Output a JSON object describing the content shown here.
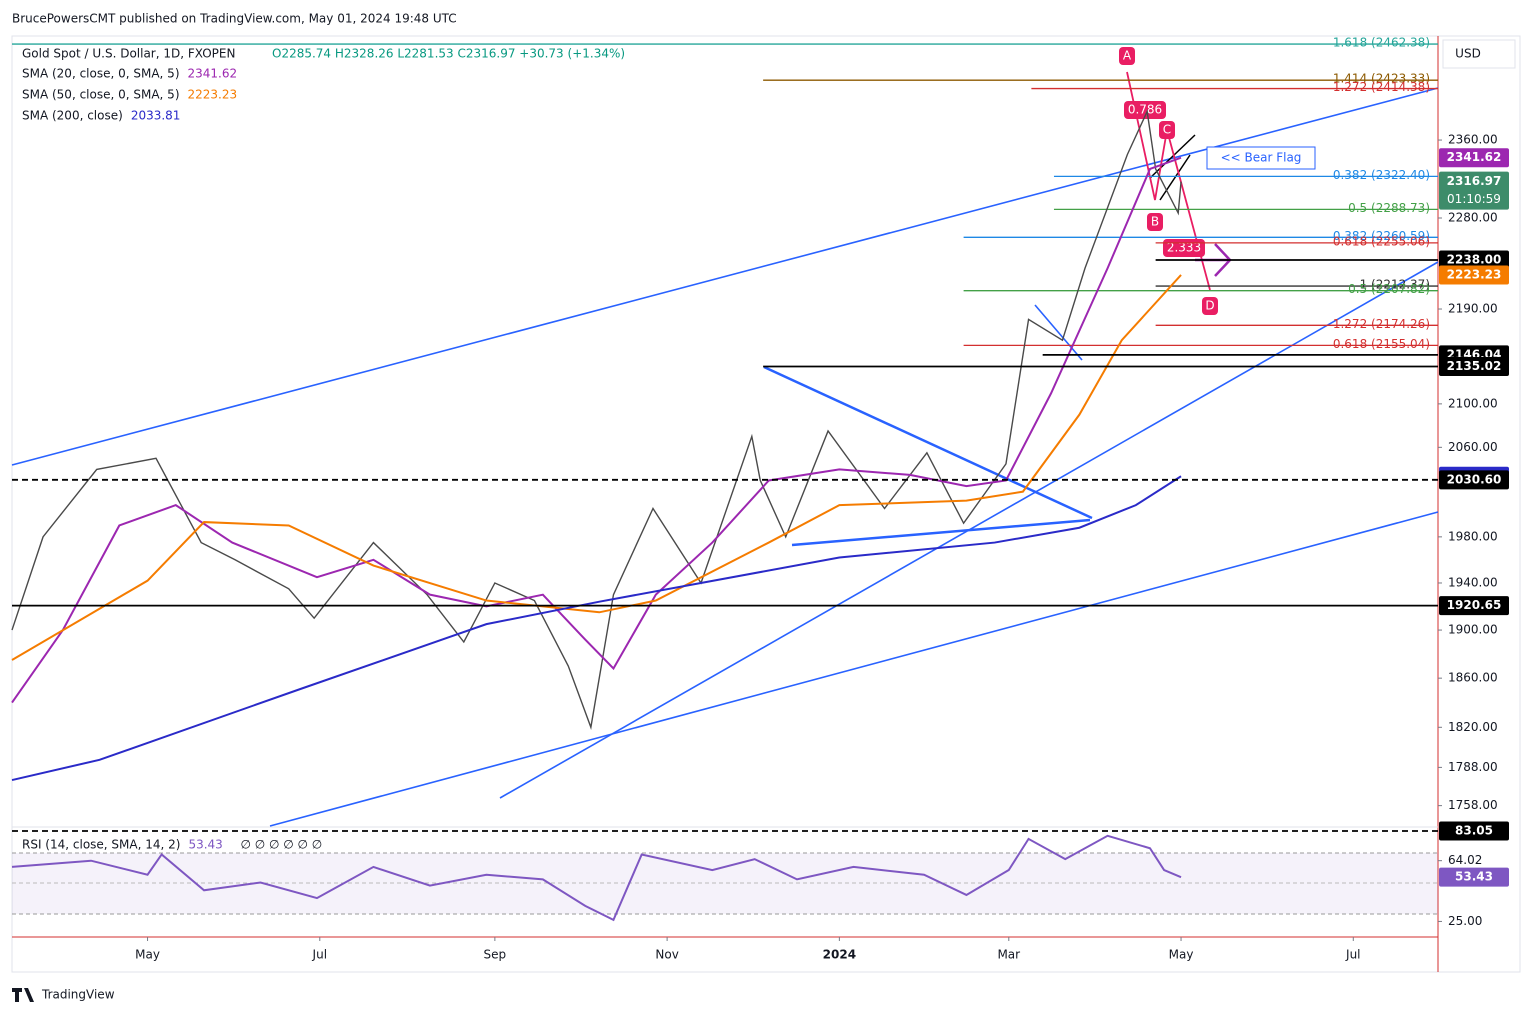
{
  "header": "BrucePowersCMT published on TradingView.com, May 01, 2024 19:48 UTC",
  "footer": "TradingView",
  "chart_data": [
    {
      "type": "line",
      "title": "Gold Spot / U.S. Dollar, 1D, FXOPEN",
      "ohlc": "O2285.74 H2328.26 L2281.53 C2316.97 +30.73 (+1.34%)",
      "currency": "USD",
      "log": true,
      "xlim": [
        -48,
        457
      ],
      "xticks": [
        {
          "value": 0,
          "label": "May"
        },
        {
          "value": 61,
          "label": "Jul"
        },
        {
          "value": 123,
          "label": "Sep"
        },
        {
          "value": 184,
          "label": "Nov"
        },
        {
          "value": 245,
          "label": "2024"
        },
        {
          "value": 305,
          "label": "Mar"
        },
        {
          "value": 366,
          "label": "May"
        },
        {
          "value": 427,
          "label": "Jul"
        }
      ],
      "ylim": [
        1743,
        2469
      ],
      "yticks": [
        {
          "value": 1758,
          "label": "1758.00"
        },
        {
          "value": 1788,
          "label": "1788.00"
        },
        {
          "value": 1820,
          "label": "1820.00"
        },
        {
          "value": 1860,
          "label": "1860.00"
        },
        {
          "value": 1900,
          "label": "1900.00"
        },
        {
          "value": 1940,
          "label": "1940.00"
        },
        {
          "value": 1980,
          "label": "1980.00"
        },
        {
          "value": 2060,
          "label": "2060.00"
        },
        {
          "value": 2100,
          "label": "2100.00"
        },
        {
          "value": 2190,
          "label": "2190.00"
        },
        {
          "value": 2280,
          "label": "2280.00"
        },
        {
          "value": 2360,
          "label": "2360.00"
        }
      ],
      "series": [
        {
          "name": "Gold Spot / U.S. Dollar, 1D, FXOPEN",
          "color": "#4a4a4a",
          "x": [
            -48,
            -37,
            -18,
            3,
            19,
            31,
            50,
            59,
            80,
            99,
            112,
            123,
            137,
            149,
            157,
            165,
            179,
            196,
            214,
            217,
            226,
            241,
            261,
            276,
            289,
            304,
            312,
            324,
            332,
            347,
            354,
            357,
            365,
            366
          ],
          "values": [
            1900,
            1980,
            2040,
            2050,
            1975,
            1960,
            1935,
            1910,
            1975,
            1930,
            1890,
            1940,
            1925,
            1870,
            1820,
            1930,
            2005,
            1940,
            2070,
            2030,
            1980,
            2075,
            2005,
            2055,
            1992,
            2045,
            2180,
            2160,
            2230,
            2345,
            2390,
            2330,
            2285,
            2316.97
          ]
        },
        {
          "name": "SMA (20, close, 0, SMA, 5)",
          "last": 2341.62,
          "color": "#9c27b0",
          "x": [
            -48,
            -30,
            -10,
            10,
            30,
            60,
            80,
            100,
            120,
            140,
            155,
            165,
            180,
            200,
            220,
            245,
            270,
            290,
            304,
            320,
            340,
            355,
            366
          ],
          "values": [
            1840,
            1900,
            1990,
            2008,
            1975,
            1945,
            1960,
            1930,
            1920,
            1930,
            1892,
            1868,
            1930,
            1975,
            2030,
            2040,
            2035,
            2025,
            2030,
            2110,
            2230,
            2330,
            2341.62
          ]
        },
        {
          "name": "SMA (50, close, 0, SMA, 5)",
          "last": 2223.23,
          "color": "#f57c00",
          "x": [
            -48,
            0,
            20,
            50,
            80,
            120,
            160,
            180,
            220,
            245,
            290,
            310,
            330,
            345,
            366
          ],
          "values": [
            1875,
            1942,
            1993,
            1990,
            1955,
            1925,
            1915,
            1925,
            1975,
            2008,
            2012,
            2020,
            2090,
            2160,
            2223.23
          ]
        },
        {
          "name": "SMA (200, close)",
          "last": 2033.81,
          "color": "#2a2ac8",
          "x": [
            -48,
            -17,
            54,
            120,
            160,
            245,
            300,
            330,
            350,
            366
          ],
          "values": [
            1778,
            1794,
            1851,
            1905,
            1924,
            1962,
            1975,
            1988,
            2008,
            2033.81
          ]
        }
      ],
      "levels": [
        {
          "label": "1.618 (2462.38)",
          "value": 2462.38,
          "from": -48,
          "color": "#26a69a"
        },
        {
          "label": "1.414 (2423.33)",
          "value": 2423.33,
          "from": 218,
          "color": "#8d5a00"
        },
        {
          "label": "1.272 (2414.38)",
          "value": 2414.38,
          "from": 313,
          "color": "#d32f2f"
        },
        {
          "label": "0.382 (2322.40)",
          "value": 2322.4,
          "from": 321,
          "color": "#1e88e5"
        },
        {
          "label": "0.5 (2288.73)",
          "value": 2288.73,
          "from": 321,
          "color": "#43a047"
        },
        {
          "label": "0.382 (2260.59)",
          "value": 2260.59,
          "from": 289,
          "color": "#1e88e5"
        },
        {
          "label": "0.618 (2255.06)",
          "value": 2255.06,
          "from": 357,
          "color": "#d32f2f"
        },
        {
          "label": "1 (2212.37)",
          "value": 2212.37,
          "from": 357,
          "color": "#333333"
        },
        {
          "label": "0.5 (2207.82)",
          "value": 2207.82,
          "from": 289,
          "color": "#43a047"
        },
        {
          "label": "1.272 (2174.26)",
          "value": 2174.26,
          "from": 357,
          "color": "#d32f2f"
        },
        {
          "label": "0.618 (2155.04)",
          "value": 2155.04,
          "from": 289,
          "color": "#d32f2f"
        }
      ],
      "price_labels": [
        {
          "value": 2341.62,
          "label": "2341.62",
          "color": "#9c27b0"
        },
        {
          "value": 2316.97,
          "label": "2316.97",
          "color": "#3d8c6a",
          "countdown": "01:10:59"
        },
        {
          "value": 2238,
          "label": "2238.00",
          "color": "#000000",
          "line_from": 357
        },
        {
          "value": 2223.23,
          "label": "2223.23",
          "color": "#f57c00"
        },
        {
          "value": 2146.04,
          "label": "2146.04",
          "color": "#000000",
          "line_from": 317
        },
        {
          "value": 2135.02,
          "label": "2135.02",
          "color": "#000000",
          "line_from": 218
        },
        {
          "value": 2033.81,
          "label": "2033.81",
          "color": "#2a2ac8"
        },
        {
          "value": 2030.6,
          "label": "2030.60",
          "color": "#000000",
          "line_from": -48,
          "dashed": true
        },
        {
          "value": 1920.65,
          "label": "1920.65",
          "color": "#000000",
          "line_from": -48
        }
      ],
      "annotations": {
        "bear_flag": "<< Bear Flag",
        "points": [
          "A",
          "B",
          "C",
          "D"
        ],
        "ratios": [
          "0.786",
          "2.333"
        ]
      }
    },
    {
      "type": "line",
      "title": "RSI (14, close, SMA, 14, 2)",
      "na": "∅ ∅ ∅ ∅ ∅ ∅",
      "xlim": [
        -48,
        457
      ],
      "ylim": [
        15,
        85
      ],
      "yticks": [
        {
          "value": 64.02,
          "label": "64.02"
        },
        {
          "value": 25,
          "label": "25.00"
        }
      ],
      "series": [
        {
          "name": "RSI (14, close, SMA, 14, 2)",
          "last": 53.43,
          "color": "#7e57c2",
          "x": [
            -48,
            -20,
            0,
            5,
            20,
            40,
            60,
            80,
            100,
            120,
            140,
            155,
            165,
            175,
            200,
            215,
            230,
            250,
            275,
            290,
            305,
            312,
            325,
            340,
            355,
            360,
            366
          ],
          "values": [
            60,
            64,
            55,
            68,
            45,
            50,
            40,
            60,
            48,
            55,
            52,
            35,
            26,
            68,
            58,
            65,
            52,
            60,
            55,
            42,
            58,
            78,
            65,
            80,
            72,
            58,
            53.43
          ]
        }
      ],
      "price_labels": [
        {
          "value": 83.05,
          "label": "83.05",
          "color": "#000000",
          "line_from": -48,
          "dashed": true
        },
        {
          "value": 53.43,
          "label": "53.43",
          "color": "#7e57c2"
        }
      ]
    }
  ]
}
